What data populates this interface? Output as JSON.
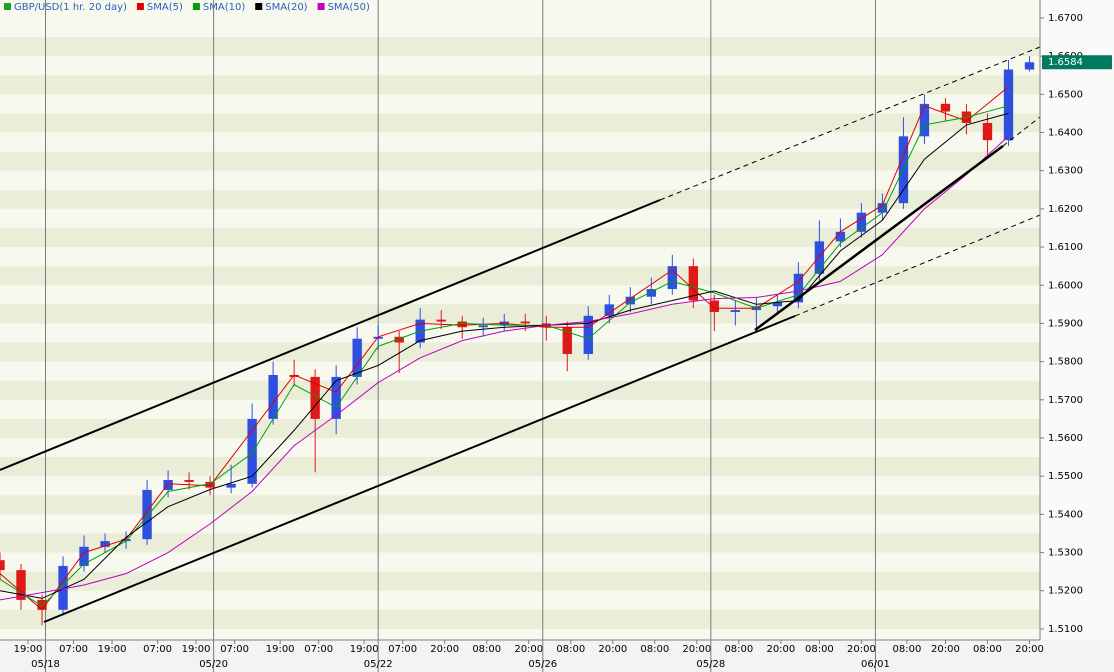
{
  "chart_data": {
    "type": "candlestick",
    "title": "GBP/USD(1 hr. 20 day)",
    "xlim": [
      0,
      297
    ],
    "ylim": [
      1.5071,
      1.6747
    ],
    "yticks": [
      {
        "value": 1.51,
        "label": "1.5100"
      },
      {
        "value": 1.52,
        "label": "1.5200"
      },
      {
        "value": 1.53,
        "label": "1.5300"
      },
      {
        "value": 1.54,
        "label": "1.5400"
      },
      {
        "value": 1.55,
        "label": "1.5500"
      },
      {
        "value": 1.56,
        "label": "1.5600"
      },
      {
        "value": 1.57,
        "label": "1.5700"
      },
      {
        "value": 1.58,
        "label": "1.5800"
      },
      {
        "value": 1.59,
        "label": "1.5900"
      },
      {
        "value": 1.6,
        "label": "1.6000"
      },
      {
        "value": 1.61,
        "label": "1.6100"
      },
      {
        "value": 1.62,
        "label": "1.6200"
      },
      {
        "value": 1.63,
        "label": "1.6300"
      },
      {
        "value": 1.64,
        "label": "1.6400"
      },
      {
        "value": 1.65,
        "label": "1.6500"
      },
      {
        "value": 1.66,
        "label": "1.6600"
      },
      {
        "value": 1.67,
        "label": "1.6700"
      }
    ],
    "xticks": [
      {
        "value": 8,
        "label": "19:00"
      },
      {
        "value": 21,
        "label": "07:00"
      },
      {
        "value": 32,
        "label": "19:00"
      },
      {
        "value": 45,
        "label": "07:00"
      },
      {
        "value": 56,
        "label": "19:00"
      },
      {
        "value": 67,
        "label": "07:00"
      },
      {
        "value": 80,
        "label": "19:00"
      },
      {
        "value": 91,
        "label": "07:00"
      },
      {
        "value": 104,
        "label": "19:00"
      },
      {
        "value": 115,
        "label": "07:00"
      },
      {
        "value": 127,
        "label": "20:00"
      },
      {
        "value": 139,
        "label": "08:00"
      },
      {
        "value": 151,
        "label": "20:00"
      },
      {
        "value": 163,
        "label": "08:00"
      },
      {
        "value": 175,
        "label": "20:00"
      },
      {
        "value": 187,
        "label": "08:00"
      },
      {
        "value": 199,
        "label": "20:00"
      },
      {
        "value": 211,
        "label": "08:00"
      },
      {
        "value": 223,
        "label": "20:00"
      },
      {
        "value": 234,
        "label": "08:00"
      },
      {
        "value": 246,
        "label": "20:00"
      },
      {
        "value": 259,
        "label": "08:00"
      },
      {
        "value": 270,
        "label": "20:00"
      },
      {
        "value": 282,
        "label": "08:00"
      },
      {
        "value": 294,
        "label": "20:00"
      }
    ],
    "date_ticks": [
      {
        "value": 13,
        "label": "05/18"
      },
      {
        "value": 61,
        "label": "05/20"
      },
      {
        "value": 108,
        "label": "05/22"
      },
      {
        "value": 155,
        "label": "05/26"
      },
      {
        "value": 203,
        "label": "05/28"
      },
      {
        "value": 250,
        "label": "06/01"
      }
    ],
    "up_color": "#2f4fe0",
    "down_color": "#e01818",
    "candles": {
      "x": [
        0,
        6,
        12,
        18,
        24,
        30,
        36,
        42,
        48,
        54,
        60,
        66,
        72,
        78,
        84,
        90,
        96,
        102,
        108,
        114,
        120,
        126,
        132,
        138,
        144,
        150,
        156,
        162,
        168,
        174,
        180,
        186,
        192,
        198,
        204,
        210,
        216,
        222,
        228,
        234,
        240,
        246,
        252,
        258,
        264,
        270,
        276,
        282,
        288,
        294
      ],
      "open": [
        1.528,
        1.5254,
        1.5176,
        1.515,
        1.5265,
        1.5315,
        1.533,
        1.5335,
        1.5464,
        1.549,
        1.5485,
        1.547,
        1.548,
        1.565,
        1.5765,
        1.576,
        1.565,
        1.576,
        1.586,
        1.5865,
        1.585,
        1.591,
        1.5905,
        1.589,
        1.5895,
        1.5905,
        1.59,
        1.589,
        1.582,
        1.592,
        1.595,
        1.597,
        1.599,
        1.605,
        1.596,
        1.593,
        1.5935,
        1.5945,
        1.5955,
        1.603,
        1.6115,
        1.614,
        1.619,
        1.6215,
        1.639,
        1.6475,
        1.6455,
        1.6425,
        1.638,
        1.6565
      ],
      "high": [
        1.53,
        1.527,
        1.519,
        1.529,
        1.5345,
        1.535,
        1.5355,
        1.549,
        1.5515,
        1.551,
        1.55,
        1.553,
        1.569,
        1.58,
        1.5805,
        1.578,
        1.579,
        1.589,
        1.5895,
        1.588,
        1.594,
        1.5935,
        1.592,
        1.5915,
        1.5925,
        1.5925,
        1.592,
        1.5905,
        1.5945,
        1.5975,
        1.5995,
        1.602,
        1.608,
        1.607,
        1.5975,
        1.596,
        1.597,
        1.5975,
        1.606,
        1.617,
        1.6175,
        1.6215,
        1.624,
        1.644,
        1.65,
        1.649,
        1.6475,
        1.645,
        1.659,
        1.66
      ],
      "low": [
        1.523,
        1.515,
        1.511,
        1.5135,
        1.525,
        1.53,
        1.531,
        1.532,
        1.5445,
        1.5465,
        1.545,
        1.5455,
        1.547,
        1.5635,
        1.5735,
        1.551,
        1.561,
        1.574,
        1.583,
        1.577,
        1.5835,
        1.5885,
        1.586,
        1.5865,
        1.588,
        1.588,
        1.5855,
        1.5775,
        1.5805,
        1.59,
        1.593,
        1.595,
        1.5975,
        1.594,
        1.588,
        1.5895,
        1.588,
        1.5925,
        1.594,
        1.601,
        1.61,
        1.6125,
        1.617,
        1.62,
        1.637,
        1.643,
        1.6395,
        1.634,
        1.6365,
        1.656
      ],
      "close": [
        1.5254,
        1.5176,
        1.515,
        1.5265,
        1.5315,
        1.533,
        1.5335,
        1.5464,
        1.549,
        1.5485,
        1.547,
        1.548,
        1.565,
        1.5765,
        1.576,
        1.565,
        1.576,
        1.586,
        1.5865,
        1.585,
        1.591,
        1.5905,
        1.589,
        1.5895,
        1.5905,
        1.59,
        1.589,
        1.582,
        1.592,
        1.595,
        1.597,
        1.599,
        1.605,
        1.596,
        1.593,
        1.5935,
        1.5945,
        1.5955,
        1.603,
        1.6115,
        1.614,
        1.619,
        1.6215,
        1.639,
        1.6475,
        1.6455,
        1.6425,
        1.638,
        1.6565,
        1.6584
      ]
    },
    "series": [
      {
        "name": "SMA(5)",
        "color": "#e00000",
        "x": [
          0,
          12,
          24,
          36,
          48,
          60,
          72,
          84,
          96,
          108,
          120,
          132,
          144,
          156,
          168,
          180,
          192,
          204,
          216,
          228,
          240,
          252,
          264,
          276,
          288
        ],
        "values": [
          1.5245,
          1.515,
          1.53,
          1.5335,
          1.548,
          1.5475,
          1.562,
          1.5765,
          1.572,
          1.5865,
          1.59,
          1.5895,
          1.59,
          1.589,
          1.589,
          1.5965,
          1.604,
          1.594,
          1.594,
          1.601,
          1.614,
          1.621,
          1.647,
          1.643,
          1.652
        ]
      },
      {
        "name": "SMA(10)",
        "color": "#00a000",
        "x": [
          0,
          12,
          24,
          36,
          48,
          60,
          72,
          84,
          96,
          108,
          120,
          132,
          144,
          156,
          168,
          180,
          192,
          204,
          216,
          228,
          240,
          252,
          264,
          276,
          288
        ],
        "values": [
          1.523,
          1.516,
          1.527,
          1.533,
          1.546,
          1.548,
          1.556,
          1.574,
          1.568,
          1.584,
          1.588,
          1.59,
          1.5895,
          1.5895,
          1.586,
          1.5955,
          1.601,
          1.598,
          1.594,
          1.5975,
          1.611,
          1.619,
          1.642,
          1.644,
          1.647
        ]
      },
      {
        "name": "SMA(20)",
        "color": "#000000",
        "x": [
          0,
          12,
          24,
          36,
          48,
          60,
          72,
          84,
          96,
          108,
          120,
          132,
          144,
          156,
          168,
          180,
          192,
          204,
          216,
          228,
          240,
          252,
          264,
          276,
          288
        ],
        "values": [
          1.52,
          1.518,
          1.523,
          1.534,
          1.542,
          1.5465,
          1.55,
          1.562,
          1.575,
          1.579,
          1.5855,
          1.588,
          1.589,
          1.5895,
          1.59,
          1.5935,
          1.596,
          1.5985,
          1.595,
          1.596,
          1.609,
          1.617,
          1.633,
          1.642,
          1.645
        ]
      },
      {
        "name": "SMA(50)",
        "color": "#c000c0",
        "x": [
          0,
          12,
          24,
          36,
          48,
          60,
          72,
          84,
          96,
          108,
          120,
          132,
          144,
          156,
          168,
          180,
          192,
          204,
          216,
          228,
          240,
          252,
          264,
          276,
          288
        ],
        "values": [
          1.5176,
          1.5195,
          1.5215,
          1.5245,
          1.53,
          1.5375,
          1.546,
          1.558,
          1.566,
          1.5745,
          1.581,
          1.5855,
          1.588,
          1.5895,
          1.5905,
          1.5925,
          1.595,
          1.5965,
          1.5968,
          1.5985,
          1.601,
          1.608,
          1.62,
          1.629,
          1.639
        ]
      }
    ],
    "last_price": {
      "value": 1.6584,
      "label": "1.6584"
    },
    "last_price_color": "#007a5e"
  }
}
